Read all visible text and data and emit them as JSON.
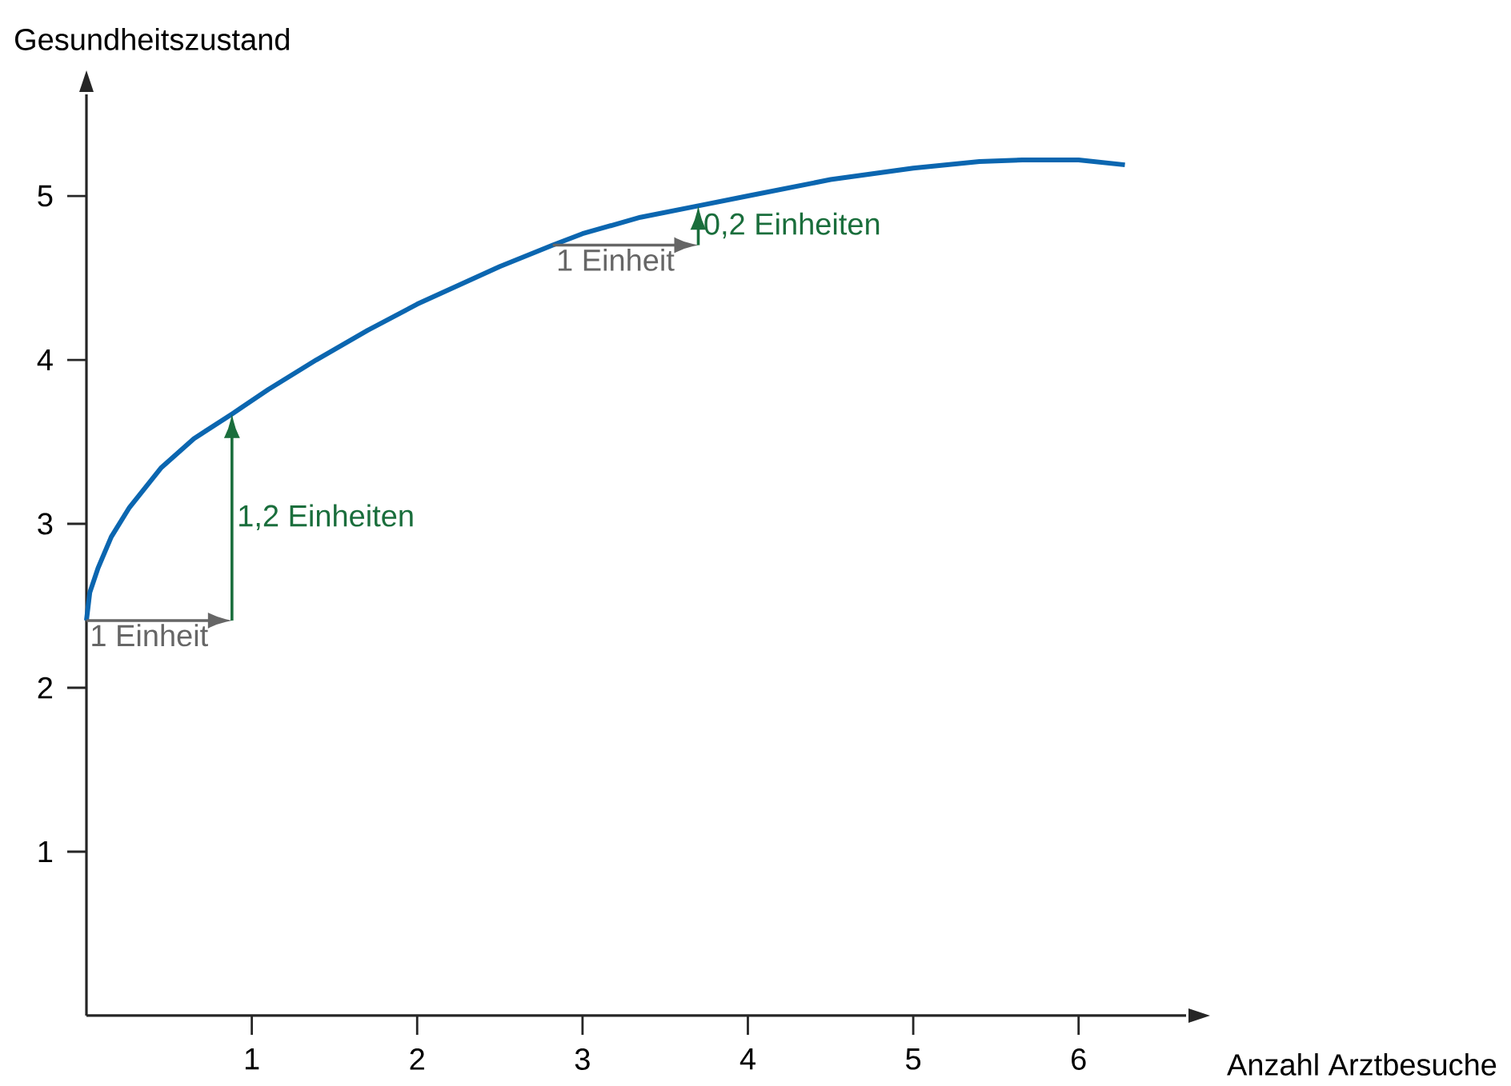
{
  "chart_data": {
    "type": "line",
    "xlabel": "Anzahl Arztbesuche",
    "ylabel": "Gesundheitszustand",
    "xlim": [
      0,
      6.65
    ],
    "ylim": [
      0,
      5.62
    ],
    "xticks": [
      1,
      2,
      3,
      4,
      5,
      6
    ],
    "yticks": [
      1,
      2,
      3,
      4,
      5
    ],
    "marker": "none",
    "line_style": "solid",
    "series": [
      {
        "color": "#0b66b0",
        "x": [
          0,
          0.02,
          0.07,
          0.15,
          0.26,
          0.45,
          0.65,
          0.88,
          1.1,
          1.39,
          1.7,
          2.0,
          2.5,
          2.82,
          3.0,
          3.35,
          3.7,
          4.0,
          4.5,
          5.0,
          5.4,
          5.66,
          6.0,
          6.28
        ],
        "values": [
          2.41,
          2.58,
          2.73,
          2.92,
          3.1,
          3.34,
          3.52,
          3.67,
          3.82,
          4.0,
          4.18,
          4.34,
          4.57,
          4.7,
          4.77,
          4.87,
          4.94,
          5.0,
          5.1,
          5.17,
          5.21,
          5.22,
          5.22,
          5.19
        ]
      }
    ],
    "annotations": [
      {
        "text": "1 Einheit",
        "x": 0,
        "y": 2.41
      },
      {
        "text": "1,2 Einheiten",
        "x": 0.88,
        "y": 3.67
      },
      {
        "text": "1 Einheit",
        "x": 2.82,
        "y": 4.7
      },
      {
        "text": "0,2 Einheiten",
        "x": 3.7,
        "y": 4.94
      }
    ]
  }
}
